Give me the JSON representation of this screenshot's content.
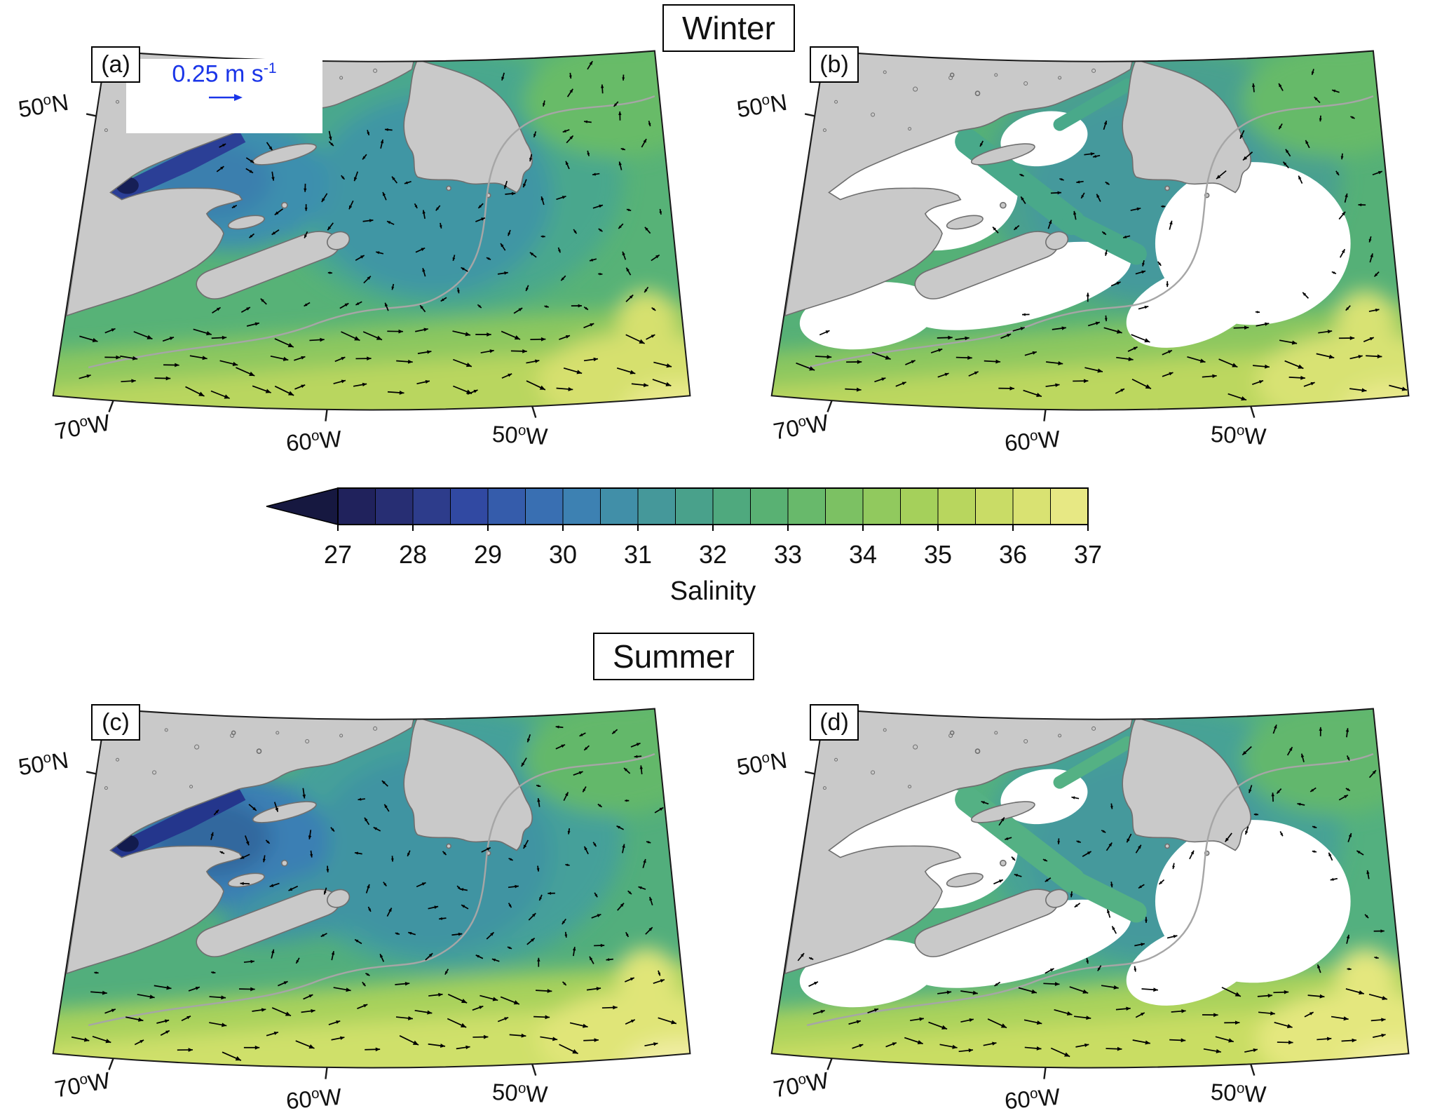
{
  "figure": {
    "titles": {
      "winter": "Winter",
      "summer": "Summer"
    },
    "panels": [
      {
        "label": "(a)",
        "season": "Winter"
      },
      {
        "label": "(b)",
        "season": "Winter"
      },
      {
        "label": "(c)",
        "season": "Summer"
      },
      {
        "label": "(d)",
        "season": "Summer"
      }
    ],
    "axes": {
      "lat": {
        "value": "50",
        "deg": "o",
        "hemi": "N"
      },
      "lons": [
        {
          "value": "70",
          "deg": "o",
          "hemi": "W"
        },
        {
          "value": "60",
          "deg": "o",
          "hemi": "W"
        },
        {
          "value": "50",
          "deg": "o",
          "hemi": "W"
        }
      ]
    },
    "scale": {
      "text": "0.25 m s",
      "sup": "-1",
      "color": "#1a35e8"
    },
    "colorbar": {
      "label": "Salinity",
      "ticks": [
        "27",
        "28",
        "29",
        "30",
        "31",
        "32",
        "33",
        "34",
        "35",
        "36",
        "37"
      ],
      "colors": [
        "#20225c",
        "#272e73",
        "#2d3c8b",
        "#3149a2",
        "#355cab",
        "#396fb2",
        "#3d81b2",
        "#418fa8",
        "#45989a",
        "#49a18b",
        "#4fa97e",
        "#59b173",
        "#68b96b",
        "#7cc163",
        "#91c95e",
        "#a5d05b",
        "#b8d65e",
        "#c9dc66",
        "#d9e272",
        "#e7e884"
      ],
      "under_color": "#161840"
    },
    "map_palette": {
      "land": "#c9c9c9",
      "coast": "#6f6f6f",
      "mask": "#ffffff",
      "contour": "#a6a6a6",
      "arrow": "#000000",
      "winter_full": {
        "base": "#57b277",
        "ne": "#68bb68",
        "mid": "#4aa78d",
        "deep": "#3f96a4",
        "gulf": "#3d8fae",
        "gulf2": "#3a7fae",
        "estuary": "#2b3f96",
        "estuary_head": "#161f56",
        "band1": "#8cc75f",
        "band2": "#b9d65e",
        "corner": "#d6e06e",
        "corner2": "#e9e98c"
      },
      "winter_mask": {
        "base": "#55b077",
        "ne": "#66ba69",
        "mid": "#49a08f",
        "deep": "#44999c",
        "band1": "#8cc75f",
        "band2": "#bcd75e",
        "corner": "#d8e273",
        "corner2": "#e9e98c",
        "channel": "#49a98a"
      },
      "summer_full": {
        "base": "#52ae7c",
        "ne": "#63b86a",
        "mid": "#45a09a",
        "deep": "#3f94a2",
        "gulf": "#3a7fb4",
        "gulf2": "#32679e",
        "estuary": "#24368c",
        "estuary_head": "#121b4e",
        "band1": "#a7d15c",
        "band2": "#cfe06a",
        "corner": "#e0e578",
        "corner2": "#f0eda2"
      },
      "summer_mask": {
        "base": "#53b07f",
        "ne": "#62b76d",
        "mid": "#47a295",
        "deep": "#44999c",
        "band1": "#a9d25c",
        "band2": "#c9dd64",
        "corner": "#e4e77e",
        "corner2": "#efec9a",
        "channel": "#54b184"
      }
    }
  },
  "chart_data": {
    "type": "heatmap",
    "title": "Sea-surface salinity with surface current vectors, Northwest Atlantic (Gulf of St. Lawrence / Newfoundland region)",
    "seasons": [
      "Winter",
      "Summer"
    ],
    "panels": [
      {
        "id": "(a)",
        "season": "Winter",
        "coverage": "full domain",
        "salinity_regions": {
          "st_lawrence_estuary": "27-29",
          "gulf_of_st_lawrence": "30-32",
          "shelf_east_of_newfoundland": "32-33",
          "open_atlantic_northeast": "33-35",
          "slope_and_gulf_stream_south": "35-36.5"
        }
      },
      {
        "id": "(b)",
        "season": "Winter",
        "coverage": "shelf areas masked white (estuary, Gulf interior, Scotian Shelf, Grand Banks)",
        "salinity_regions": {
          "laurentian_channel": "32-33",
          "open_atlantic_northeast": "33-35",
          "slope_and_gulf_stream_south": "35-36.5"
        }
      },
      {
        "id": "(c)",
        "season": "Summer",
        "coverage": "full domain",
        "salinity_regions": {
          "st_lawrence_estuary": "27-28",
          "gulf_of_st_lawrence": "29-31",
          "shelf_east_of_newfoundland": "31-33",
          "open_atlantic_northeast": "33-35",
          "slope_and_gulf_stream_south": "35-37"
        }
      },
      {
        "id": "(d)",
        "season": "Summer",
        "coverage": "shelf areas masked white (estuary, Gulf interior, Scotian Shelf, Grand Banks)",
        "salinity_regions": {
          "laurentian_channel": "31-33",
          "open_atlantic_northeast": "33-35",
          "slope_and_gulf_stream_south": "35-37"
        }
      }
    ],
    "colorbar": {
      "variable": "Salinity",
      "range": [
        27,
        37
      ],
      "tick_step": 1,
      "segments": 20,
      "extends_below_min": true
    },
    "vectors": {
      "variable": "surface current velocity",
      "reference_arrow": "0.25 m s-1",
      "color": "black"
    },
    "axes": {
      "latitude_tick": "50°N",
      "longitude_ticks": [
        "70°W",
        "60°W",
        "50°W"
      ]
    },
    "landmarks": [
      "Quebec/Labrador mainland",
      "Newfoundland",
      "Nova Scotia",
      "Anticosti Island",
      "Prince Edward Island"
    ]
  }
}
